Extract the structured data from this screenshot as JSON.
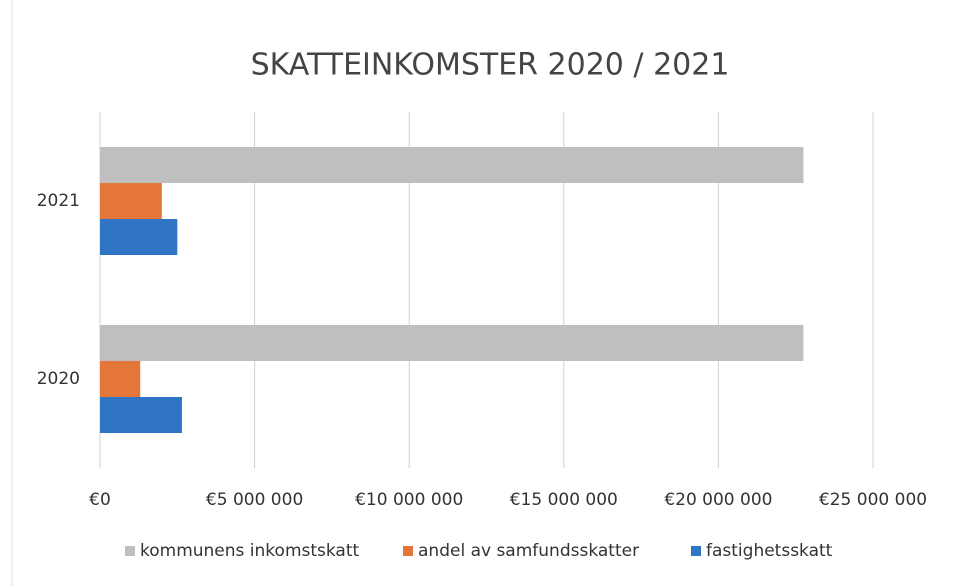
{
  "chart_data": {
    "type": "barh",
    "title": "SKATTEINKOMSTER  2020 / 2021",
    "categories": [
      "2021",
      "2020"
    ],
    "series": [
      {
        "name": "kommunens inkomstskatt",
        "color": "#bfbfbf",
        "values": [
          22750000,
          22750000
        ]
      },
      {
        "name": "andel av samfundsskatter",
        "color": "#e4763a",
        "values": [
          2000000,
          1300000
        ]
      },
      {
        "name": "fastighetsskatt",
        "color": "#2f74c5",
        "values": [
          2500000,
          2650000
        ]
      }
    ],
    "xlim": [
      0,
      25000000
    ],
    "xticks": [
      {
        "value": 0,
        "label": "€0"
      },
      {
        "value": 5000000,
        "label": "€5 000 000"
      },
      {
        "value": 10000000,
        "label": "€10 000 000"
      },
      {
        "value": 15000000,
        "label": "€15 000 000"
      },
      {
        "value": 20000000,
        "label": "€20 000 000"
      },
      {
        "value": 25000000,
        "label": "€25 000 000"
      }
    ],
    "grid": true,
    "legend": "bottom"
  }
}
